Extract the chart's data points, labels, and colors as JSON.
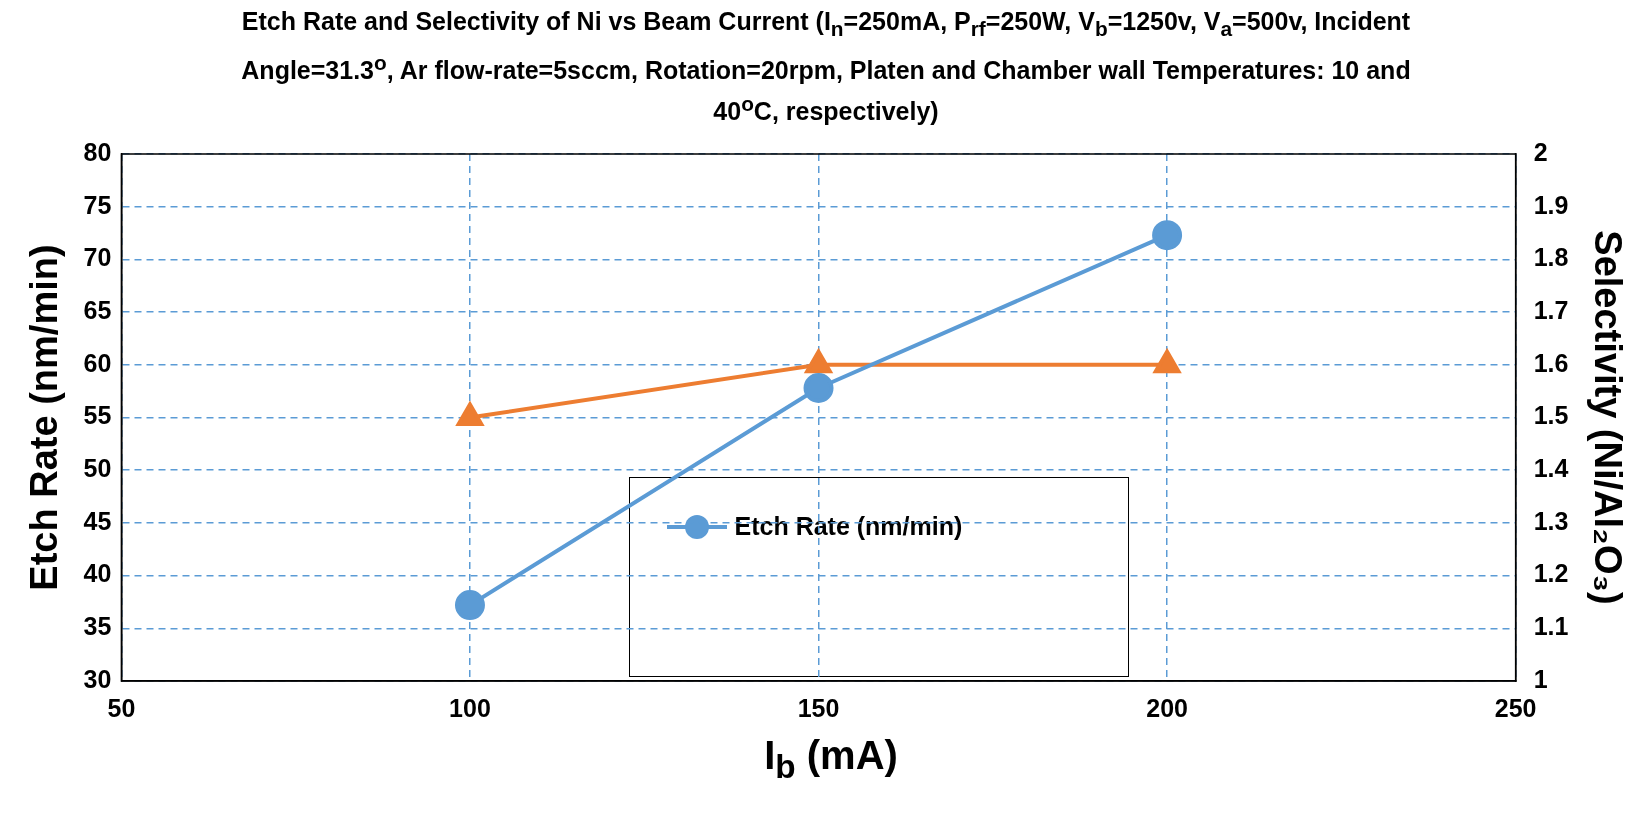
{
  "chart_data": {
    "type": "line",
    "title": "Etch Rate and Selectivity of Ni vs Beam Current (I$_{n}$=250mA, P$_{rf}$=250W, V$_{b}$=1250v, V$_{a}$=500v, Incident Angle=31.3$^{o}$, Ar flow-rate=5sccm, Rotation=20rpm, Platen and Chamber wall Temperatures: 10 and 40$^{o}$C, respectively)",
    "xlabel": "I$_{b}$ (mA)",
    "ylabel": "Etch Rate (nm/min)",
    "y2label": "Selectivity (Ni/Al₂O₃)",
    "x": [
      100,
      150,
      200
    ],
    "series": [
      {
        "name": "Etch Rate (nm/min)",
        "color": "#5b9bd5",
        "values": [
          37.2,
          57.8,
          72.3
        ],
        "marker": "circle"
      },
      {
        "color": "#ed7d31",
        "values": [
          1.5,
          1.6,
          1.6
        ],
        "axis": "y2",
        "marker": "triangle"
      }
    ],
    "xlim": [
      50,
      250
    ],
    "xticks": [
      50,
      100,
      150,
      200,
      250
    ],
    "ylim": [
      30,
      80
    ],
    "yticks": [
      30,
      35,
      40,
      45,
      50,
      55,
      60,
      65,
      70,
      75,
      80
    ],
    "y2lim": [
      1,
      2
    ],
    "y2ticks": [
      1,
      1.1,
      1.2,
      1.3,
      1.4,
      1.5,
      1.6,
      1.7,
      1.8,
      1.9,
      2
    ],
    "grid": true,
    "legend": "bottom",
    "line_style": "solid"
  }
}
